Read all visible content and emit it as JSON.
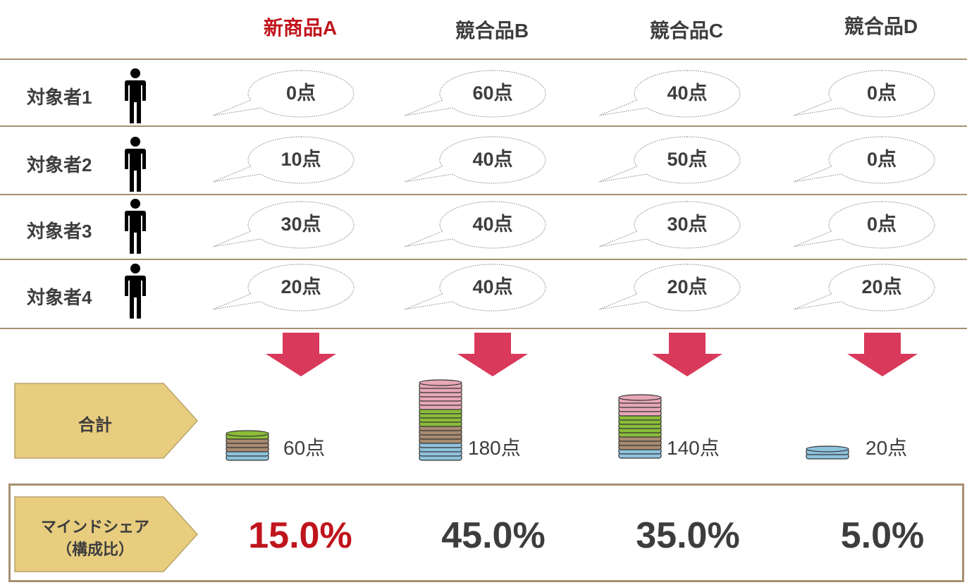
{
  "colors": {
    "highlight": "#c0141c",
    "text": "#3d3d3d",
    "divider": "#a89072",
    "arrow": "#d9395a",
    "tag_fill": "#e8cd7f",
    "coin_pink": "#e7a8b8",
    "coin_green": "#8bbd3a",
    "coin_brown": "#a88b71",
    "coin_blue": "#8fc3de"
  },
  "products": [
    {
      "label": "新商品A",
      "highlight": true
    },
    {
      "label": "競合品B",
      "highlight": false
    },
    {
      "label": "競合品C",
      "highlight": false
    },
    {
      "label": "競合品D",
      "highlight": false
    }
  ],
  "subjects": [
    {
      "label": "対象者1",
      "icon": "person-icon",
      "scores": [
        "0点",
        "60点",
        "40点",
        "0点"
      ]
    },
    {
      "label": "対象者2",
      "icon": "person-icon",
      "scores": [
        "10点",
        "40点",
        "50点",
        "0点"
      ]
    },
    {
      "label": "対象者3",
      "icon": "person-icon",
      "scores": [
        "30点",
        "40点",
        "30点",
        "0点"
      ]
    },
    {
      "label": "対象者4",
      "icon": "person-icon",
      "scores": [
        "20点",
        "40点",
        "20点",
        "20点"
      ]
    }
  ],
  "total": {
    "label": "合計",
    "values": [
      "60点",
      "180点",
      "140点",
      "20点"
    ]
  },
  "mind_share": {
    "label_line1": "マインドシェア",
    "label_line2": "（構成比）",
    "values": [
      "15.0%",
      "45.0%",
      "35.0%",
      "5.0%"
    ]
  }
}
